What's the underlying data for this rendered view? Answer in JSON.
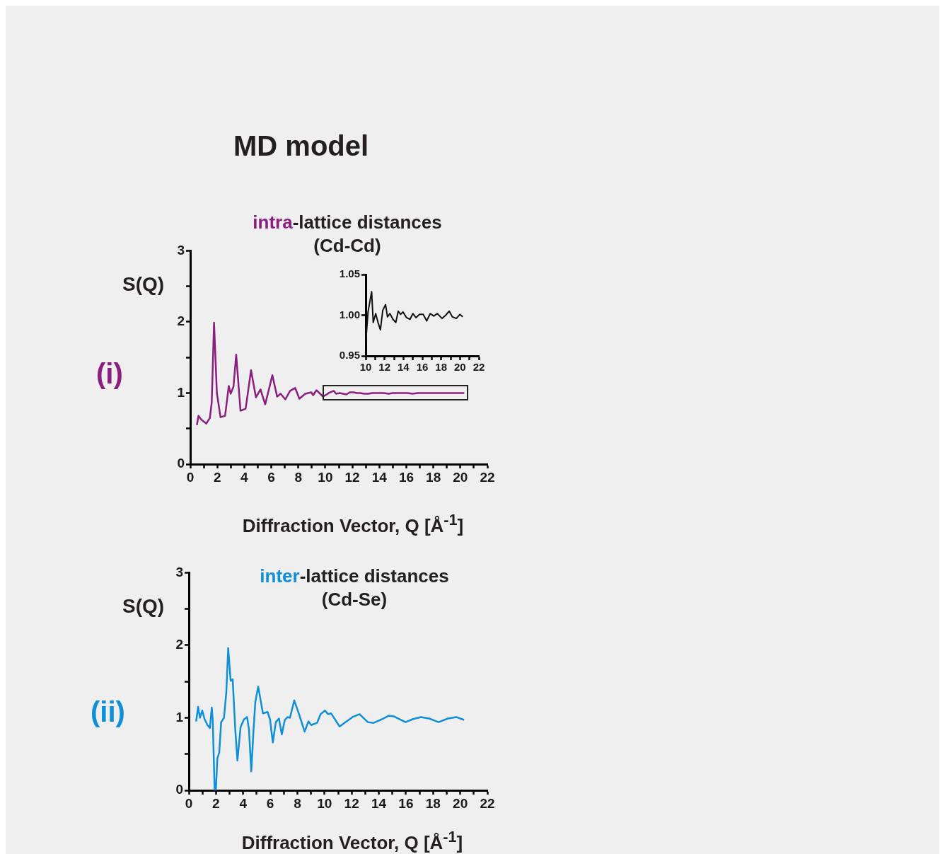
{
  "chart_data": [
    {
      "type": "line",
      "title": "intra-lattice distances",
      "subtitle": "(Cd-Cd)",
      "xlabel": "Diffraction Vector, Q [Å$^{-1}$]",
      "ylabel": "S(Q)",
      "annotations": [
        "MD model",
        "(i)"
      ],
      "x": [
        0.49,
        0.61,
        0.8,
        1.19,
        1.45,
        1.59,
        1.76,
        1.97,
        2.24,
        2.58,
        2.85,
        2.99,
        3.2,
        3.4,
        3.72,
        4.1,
        4.5,
        4.86,
        5.2,
        5.55,
        6.08,
        6.43,
        6.69,
        7.04,
        7.39,
        7.77,
        8.08,
        8.52,
        8.96,
        9.1,
        9.34,
        9.83,
        10.1,
        10.25,
        10.63,
        10.8,
        11.06,
        11.31,
        11.56,
        11.81,
        12.11,
        12.31,
        12.57,
        12.89,
        13.19,
        13.45,
        13.7,
        13.95,
        14.33,
        14.7,
        15.0,
        15.33,
        15.71,
        16.09,
        16.47,
        16.84,
        17.22,
        17.6,
        18.1,
        18.48,
        18.86,
        19.18,
        19.61,
        19.99,
        20.29
      ],
      "series": [
        {
          "color": "#8b1f7f",
          "values": [
            0.55,
            0.68,
            0.63,
            0.57,
            0.65,
            0.87,
            1.99,
            1.0,
            0.66,
            0.68,
            1.1,
            0.99,
            1.09,
            1.54,
            0.75,
            0.78,
            1.32,
            0.94,
            1.05,
            0.84,
            1.25,
            0.95,
            0.99,
            0.91,
            1.03,
            1.07,
            0.92,
            0.99,
            1.01,
            0.97,
            1.04,
            0.95,
            0.98,
            1.0,
            1.03,
            0.99,
            1.0,
            0.99,
            0.98,
            1.01,
            1.01,
            1.0,
            1.0,
            0.99,
            0.99,
            1.0,
            1.0,
            1.0,
            1.0,
            0.99,
            1.0,
            1.0,
            1.0,
            1.0,
            0.99,
            1.0,
            1.0,
            1.0,
            1.0,
            1.0,
            1.0,
            1.0,
            1.0,
            1.0,
            1.0
          ]
        }
      ],
      "xlim": [
        0,
        22
      ],
      "xticks": [
        0,
        {
          "value": 1,
          "label": null
        },
        2,
        {
          "value": 3,
          "label": null
        },
        4,
        {
          "value": 5,
          "label": null
        },
        6,
        {
          "value": 7,
          "label": null
        },
        8,
        {
          "value": 9,
          "label": null
        },
        10,
        {
          "value": 11,
          "label": null
        },
        12,
        {
          "value": 13,
          "label": null
        },
        14,
        {
          "value": 15,
          "label": null
        },
        16,
        {
          "value": 17,
          "label": null
        },
        18,
        {
          "value": 19,
          "label": null
        },
        20,
        {
          "value": 21,
          "label": null
        },
        22
      ],
      "ylim": [
        0,
        3
      ],
      "yticks": [
        0,
        {
          "value": 0.5,
          "label": null
        },
        1,
        {
          "value": 1.5,
          "label": null
        },
        2,
        {
          "value": 2.5,
          "label": null
        },
        3
      ],
      "grid": false,
      "legend": false
    },
    {
      "type": "line",
      "x": [
        10,
        10.1,
        10.25,
        10.63,
        10.8,
        11.06,
        11.31,
        11.56,
        11.81,
        12.11,
        12.31,
        12.57,
        12.89,
        13.19,
        13.45,
        13.7,
        13.95,
        14.33,
        14.7,
        15.0,
        15.33,
        15.71,
        16.09,
        16.47,
        16.84,
        17.22,
        17.6,
        18.1,
        18.48,
        18.86,
        19.18,
        19.61,
        19.99,
        20.29
      ],
      "series": [
        {
          "color": "#111111",
          "values": [
            0.967,
            0.981,
            1.004,
            1.029,
            0.991,
            1.002,
            0.991,
            0.982,
            1.006,
            1.013,
            0.998,
            1.002,
            0.995,
            0.991,
            1.005,
            1.001,
            1.004,
            0.997,
            0.995,
            1.002,
            0.997,
            1.001,
            1.001,
            0.993,
            1.002,
            0.999,
            1.002,
            0.996,
            1.0,
            1.005,
            0.998,
            0.996,
            1.001,
            0.998
          ]
        }
      ],
      "xlim": [
        10,
        22
      ],
      "xticks": [
        10,
        {
          "value": 11,
          "label": null
        },
        12,
        {
          "value": 13,
          "label": null
        },
        14,
        {
          "value": 15,
          "label": null
        },
        16,
        {
          "value": 17,
          "label": null
        },
        18,
        {
          "value": 19,
          "label": null
        },
        20,
        {
          "value": 21,
          "label": null
        },
        22
      ],
      "ylim": [
        0.95,
        1.05
      ],
      "yticks": [
        0.95,
        {
          "value": 1,
          "label": "1.00"
        },
        1.05
      ],
      "grid": false,
      "legend": false
    },
    {
      "type": "line",
      "title": "inter-lattice distances",
      "subtitle": "(Cd-Se)",
      "xlabel": "Diffraction Vector, Q [Å$^{-1}$]",
      "ylabel": "S(Q)",
      "annotations": [
        "(ii)"
      ],
      "x": [
        0.54,
        0.68,
        0.82,
        0.99,
        1.16,
        1.37,
        1.55,
        1.69,
        1.76,
        1.9,
        1.99,
        2.1,
        2.24,
        2.38,
        2.59,
        2.76,
        2.9,
        3.08,
        3.23,
        3.42,
        3.58,
        3.81,
        4.07,
        4.29,
        4.43,
        4.6,
        4.76,
        4.9,
        5.11,
        5.46,
        5.8,
        5.98,
        6.19,
        6.41,
        6.64,
        6.85,
        7.07,
        7.28,
        7.45,
        7.77,
        8.12,
        8.53,
        8.81,
        9.02,
        9.45,
        9.71,
        10.03,
        10.26,
        10.49,
        11.07,
        11.11,
        11.63,
        12.06,
        12.58,
        13.19,
        13.62,
        14.23,
        14.75,
        15.1,
        15.97,
        16.49,
        17.1,
        17.71,
        18.4,
        19.1,
        19.71,
        20.28
      ],
      "series": [
        {
          "color": "#0f8fd8",
          "values": [
            0.95,
            1.15,
            1.0,
            1.1,
            0.98,
            0.9,
            0.86,
            1.14,
            0.97,
            0,
            0,
            0.44,
            0.52,
            0.94,
            1.0,
            1.35,
            1.96,
            1.51,
            1.53,
            0.84,
            0.41,
            0.87,
            0.98,
            1.01,
            0.84,
            0.26,
            0.81,
            1.22,
            1.43,
            1.06,
            1.08,
            0.98,
            0.66,
            0.94,
            0.99,
            0.77,
            0.97,
            1.01,
            1.0,
            1.24,
            1.05,
            0.81,
            0.95,
            0.9,
            0.93,
            1.05,
            1.1,
            1.05,
            1.06,
            0.89,
            0.88,
            0.95,
            1.01,
            1.05,
            0.94,
            0.93,
            0.98,
            1.03,
            1.02,
            0.94,
            0.98,
            1.01,
            0.99,
            0.94,
            0.99,
            1.01,
            0.97
          ]
        }
      ],
      "xlim": [
        0,
        22
      ],
      "xticks": [
        0,
        {
          "value": 1,
          "label": null
        },
        2,
        {
          "value": 3,
          "label": null
        },
        4,
        {
          "value": 5,
          "label": null
        },
        6,
        {
          "value": 7,
          "label": null
        },
        8,
        {
          "value": 9,
          "label": null
        },
        10,
        {
          "value": 11,
          "label": null
        },
        12,
        {
          "value": 13,
          "label": null
        },
        14,
        {
          "value": 15,
          "label": null
        },
        16,
        {
          "value": 17,
          "label": null
        },
        18,
        {
          "value": 19,
          "label": null
        },
        20,
        {
          "value": 21,
          "label": null
        },
        22
      ],
      "ylim": [
        0,
        3
      ],
      "yticks": [
        0,
        {
          "value": 0.5,
          "label": null
        },
        1,
        {
          "value": 1.5,
          "label": null
        },
        2,
        {
          "value": 2.5,
          "label": null
        },
        3
      ],
      "grid": false,
      "legend": false
    }
  ]
}
